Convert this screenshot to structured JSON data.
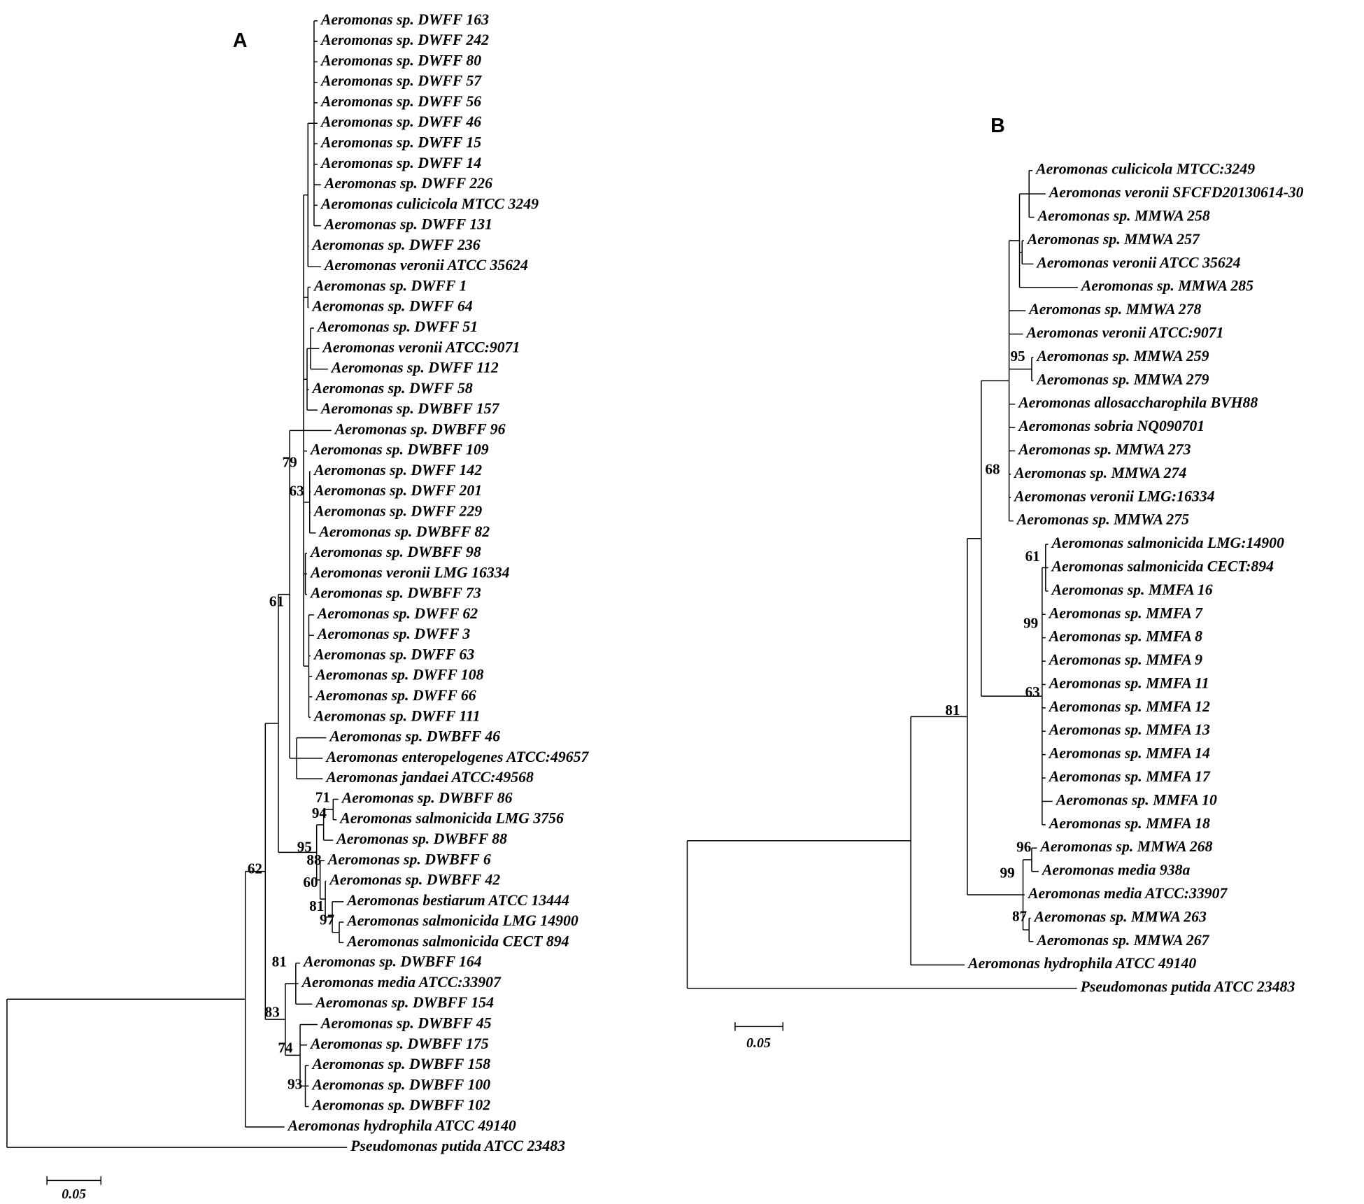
{
  "panels": [
    {
      "label": "A",
      "leaves": [
        "Aeromonas sp. DWFF 163",
        "Aeromonas sp. DWFF 242",
        "Aeromonas sp. DWFF 80",
        "Aeromonas sp. DWFF 57",
        "Aeromonas sp. DWFF 56",
        "Aeromonas sp. DWFF 46",
        "Aeromonas sp. DWFF 15",
        "Aeromonas sp. DWFF 14",
        "Aeromonas sp. DWFF 226",
        "Aeromonas culicicola MTCC 3249",
        "Aeromonas sp. DWFF 131",
        "Aeromonas sp. DWFF 236",
        "Aeromonas veronii ATCC 35624",
        "Aeromonas sp. DWFF 1",
        "Aeromonas sp. DWFF 64",
        "Aeromonas sp. DWFF 51",
        "Aeromonas veronii ATCC:9071",
        "Aeromonas sp. DWFF 112",
        "Aeromonas sp. DWFF 58",
        "Aeromonas sp. DWBFF 157",
        "Aeromonas sp. DWBFF 96",
        "Aeromonas sp. DWBFF 109",
        "Aeromonas sp. DWFF 142",
        "Aeromonas sp. DWFF 201",
        "Aeromonas sp. DWFF 229",
        "Aeromonas sp. DWBFF 82",
        "Aeromonas sp. DWBFF 98",
        "Aeromonas veronii LMG 16334",
        "Aeromonas sp. DWBFF 73",
        "Aeromonas sp. DWFF 62",
        "Aeromonas sp. DWFF 3",
        "Aeromonas sp. DWFF 63",
        "Aeromonas sp. DWFF 108",
        "Aeromonas sp. DWFF 66",
        "Aeromonas sp. DWFF 111",
        "Aeromonas sp. DWBFF 46",
        "Aeromonas enteropelogenes ATCC:49657",
        "Aeromonas jandaei ATCC:49568",
        "Aeromonas sp. DWBFF 86",
        "Aeromonas salmonicida LMG 3756",
        "Aeromonas sp. DWBFF 88",
        "Aeromonas sp. DWBFF 6",
        "Aeromonas sp. DWBFF 42",
        "Aeromonas bestiarum ATCC 13444",
        "Aeromonas salmonicida LMG 14900",
        "Aeromonas salmonicida CECT 894",
        "Aeromonas sp. DWBFF 164",
        "Aeromonas media ATCC:33907",
        "Aeromonas sp. DWBFF 154",
        "Aeromonas sp. DWBFF 45",
        "Aeromonas sp. DWBFF 175",
        "Aeromonas sp. DWBFF 158",
        "Aeromonas sp. DWBFF 100",
        "Aeromonas sp. DWBFF 102",
        "Aeromonas hydrophila ATCC 49140",
        "Pseudomonas putida ATCC 23483"
      ],
      "support": [
        79,
        63,
        61,
        62,
        71,
        94,
        95,
        88,
        60,
        81,
        97,
        81,
        83,
        74,
        93
      ],
      "scale_bar": "0.05"
    },
    {
      "label": "B",
      "leaves": [
        "Aeromonas culicicola MTCC:3249",
        "Aeromonas veronii SFCFD20130614-30",
        "Aeromonas sp. MMWA 258",
        "Aeromonas sp. MMWA 257",
        "Aeromonas veronii ATCC 35624",
        "Aeromonas sp. MMWA 285",
        "Aeromonas sp. MMWA 278",
        "Aeromonas veronii ATCC:9071",
        "Aeromonas sp. MMWA 259",
        "Aeromonas sp. MMWA 279",
        "Aeromonas allosaccharophila BVH88",
        "Aeromonas sobria NQ090701",
        "Aeromonas sp. MMWA 273",
        "Aeromonas sp. MMWA 274",
        "Aeromonas veronii LMG:16334",
        "Aeromonas sp. MMWA 275",
        "Aeromonas salmonicida LMG:14900",
        "Aeromonas salmonicida CECT:894",
        "Aeromonas sp. MMFA 16",
        "Aeromonas sp. MMFA 7",
        "Aeromonas sp. MMFA 8",
        "Aeromonas sp. MMFA 9",
        "Aeromonas sp. MMFA 11",
        "Aeromonas sp. MMFA 12",
        "Aeromonas sp. MMFA 13",
        "Aeromonas sp. MMFA 14",
        "Aeromonas sp. MMFA 17",
        "Aeromonas sp. MMFA 10",
        "Aeromonas sp. MMFA 18",
        "Aeromonas sp. MMWA 268",
        "Aeromonas media 938a",
        "Aeromonas media ATCC:33907",
        "Aeromonas sp. MMWA 263",
        "Aeromonas sp. MMWA 267",
        "Aeromonas hydrophila ATCC 49140",
        "Pseudomonas putida ATCC 23483"
      ],
      "support": [
        95,
        68,
        61,
        99,
        63,
        81,
        96,
        99,
        87
      ],
      "scale_bar": "0.05"
    }
  ]
}
